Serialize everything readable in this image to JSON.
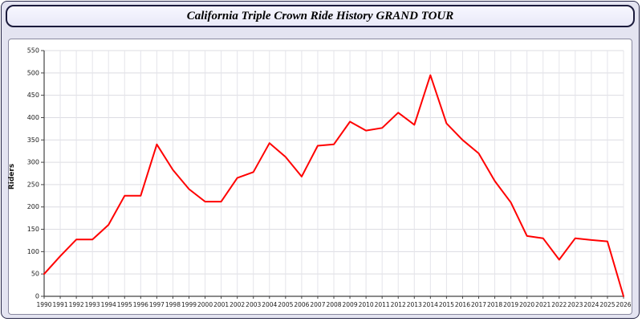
{
  "title": "California Triple Crown Ride History GRAND TOUR",
  "colors": {
    "page_background": "#e4e4f1",
    "panel_background": "#ffffff",
    "title_border": "#1b1b3c",
    "line_color": "#ff0000",
    "grid_color": "#dcdce2",
    "axis_color": "#444444",
    "tick_text_color": "#1a1a1a"
  },
  "chart_data": {
    "type": "line",
    "title": "California Triple Crown Ride History GRAND TOUR",
    "xlabel": "",
    "ylabel": "Riders",
    "ylim": [
      0,
      550
    ],
    "y_tick_step": 50,
    "grid": true,
    "legend": "none",
    "categories": [
      "1990",
      "1991",
      "1992",
      "1993",
      "1994",
      "1995",
      "1996",
      "1997",
      "1998",
      "1999",
      "2000",
      "2001",
      "2002",
      "2003",
      "2004",
      "2005",
      "2006",
      "2007",
      "2008",
      "2009",
      "2010",
      "2011",
      "2012",
      "2013",
      "2014",
      "2015",
      "2016",
      "2017",
      "2018",
      "2019",
      "2020",
      "2021",
      "2022",
      "2023",
      "2024",
      "2025",
      "2026"
    ],
    "series": [
      {
        "name": "Riders",
        "color": "#ff0000",
        "values": [
          50,
          90,
          127,
          127,
          160,
          225,
          225,
          340,
          283,
          240,
          212,
          212,
          265,
          278,
          343,
          312,
          268,
          337,
          340,
          391,
          371,
          377,
          411,
          384,
          495,
          387,
          350,
          320,
          258,
          210,
          135,
          130,
          82,
          130,
          126,
          123,
          0
        ]
      }
    ]
  }
}
